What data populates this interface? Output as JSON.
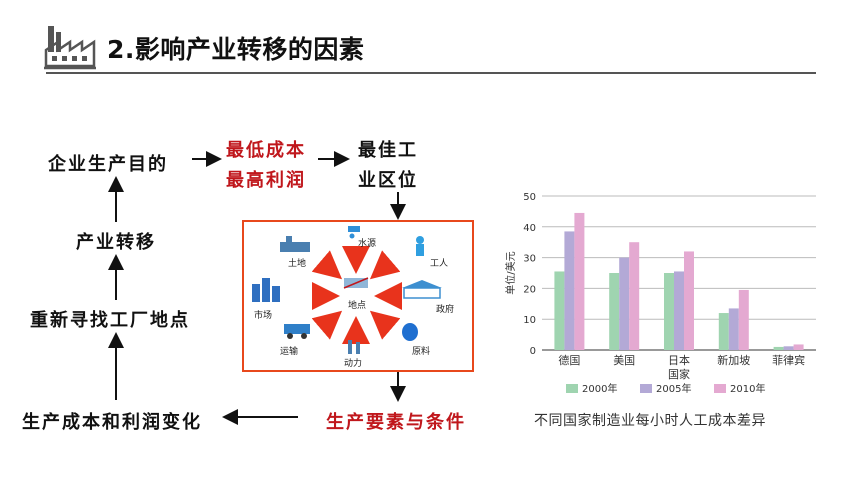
{
  "header": {
    "title": "2.影响产业转移的因素",
    "icon": "factory-icon"
  },
  "flow": {
    "goal": "企业生产目的",
    "min_cost": "最低成本",
    "max_profit": "最高利润",
    "best_1": "最佳工",
    "best_2": "业区位",
    "transfer": "产业转移",
    "relocate": "重新寻找工厂地点",
    "change": "生产成本和利润变化",
    "factors": "生产要素与条件"
  },
  "factor_diagram": {
    "center": "地点",
    "items": [
      "土地",
      "水源",
      "工人",
      "市场",
      "政府",
      "运输",
      "动力",
      "原料"
    ]
  },
  "chart_data": {
    "type": "bar",
    "title": "",
    "xlabel": "国家",
    "ylabel": "单位/美元",
    "ylim": [
      0,
      50
    ],
    "yticks": [
      0,
      10,
      20,
      30,
      40,
      50
    ],
    "categories": [
      "德国",
      "美国",
      "日本",
      "新加坡",
      "菲律宾"
    ],
    "series": [
      {
        "name": "2000年",
        "color": "#9fd4b0",
        "values": [
          25.5,
          25,
          25,
          12,
          1
        ]
      },
      {
        "name": "2005年",
        "color": "#b3a9d6",
        "values": [
          38.5,
          30,
          25.5,
          13.5,
          1.2
        ]
      },
      {
        "name": "2010年",
        "color": "#e4a9d1",
        "values": [
          44.5,
          35,
          32,
          19.5,
          1.8
        ]
      }
    ],
    "grid": true,
    "legend_position": "bottom"
  },
  "caption": "不同国家制造业每小时人工成本差异"
}
